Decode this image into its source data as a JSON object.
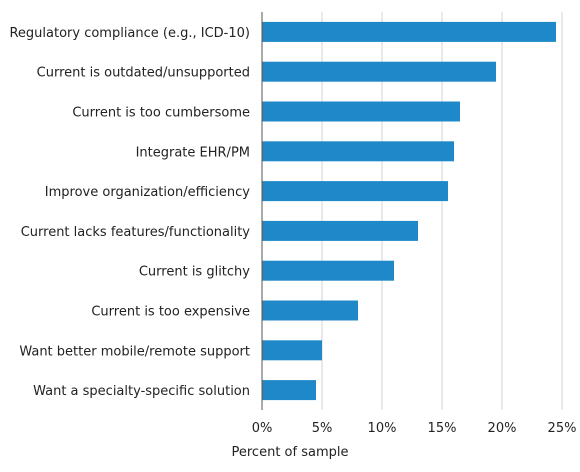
{
  "chart_data": {
    "type": "bar",
    "orientation": "horizontal",
    "categories": [
      "Regulatory compliance (e.g., ICD-10)",
      "Current is outdated/unsupported",
      "Current is too cumbersome",
      "Integrate EHR/PM",
      "Improve organization/efficiency",
      "Current lacks features/functionality",
      "Current is glitchy",
      "Current is too expensive",
      "Want better mobile/remote support",
      "Want a specialty-specific solution"
    ],
    "values": [
      24.5,
      19.5,
      16.5,
      16.0,
      15.5,
      13.0,
      11.0,
      8.0,
      5.0,
      4.5
    ],
    "title": "",
    "xlabel": "Percent of sample",
    "ylabel": "",
    "xlim": [
      0,
      25
    ],
    "xticks": [
      0,
      5,
      10,
      15,
      20,
      25
    ],
    "xtick_labels": [
      "0%",
      "5%",
      "10%",
      "15%",
      "20%",
      "25%"
    ],
    "grid": "vertical",
    "legend": "none",
    "colors": {
      "bar": "#1f88c9",
      "grid": "#d3d3d3",
      "axis": "#555555"
    }
  }
}
